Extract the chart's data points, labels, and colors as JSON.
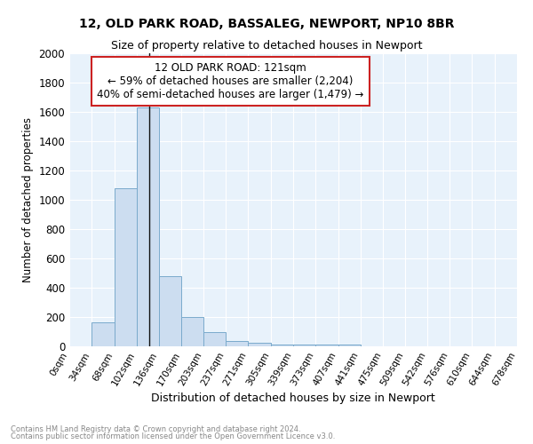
{
  "title_line1": "12, OLD PARK ROAD, BASSALEG, NEWPORT, NP10 8BR",
  "title_line2": "Size of property relative to detached houses in Newport",
  "xlabel": "Distribution of detached houses by size in Newport",
  "ylabel": "Number of detached properties",
  "footnote1": "Contains HM Land Registry data © Crown copyright and database right 2024.",
  "footnote2": "Contains public sector information licensed under the Open Government Licence v3.0.",
  "annotation_title": "12 OLD PARK ROAD: 121sqm",
  "annotation_line1": "← 59% of detached houses are smaller (2,204)",
  "annotation_line2": "40% of semi-detached houses are larger (1,479) →",
  "property_size": 121,
  "bar_color": "#ccddf0",
  "bar_edge_color": "#7aaacc",
  "property_line_color": "#111111",
  "annotation_box_color": "#ffffff",
  "annotation_box_edge_color": "#cc2222",
  "background_color": "#e8f2fb",
  "bins": [
    0,
    34,
    68,
    102,
    136,
    170,
    203,
    237,
    271,
    305,
    339,
    373,
    407,
    441,
    475,
    509,
    542,
    576,
    610,
    644,
    678
  ],
  "counts": [
    0,
    165,
    1080,
    1630,
    480,
    200,
    100,
    35,
    25,
    15,
    15,
    15,
    15,
    0,
    0,
    0,
    0,
    0,
    0,
    0
  ],
  "ylim": [
    0,
    2000
  ],
  "yticks": [
    0,
    200,
    400,
    600,
    800,
    1000,
    1200,
    1400,
    1600,
    1800,
    2000
  ],
  "bin_labels": [
    "0sqm",
    "34sqm",
    "68sqm",
    "102sqm",
    "136sqm",
    "170sqm",
    "203sqm",
    "237sqm",
    "271sqm",
    "305sqm",
    "339sqm",
    "373sqm",
    "407sqm",
    "441sqm",
    "475sqm",
    "509sqm",
    "542sqm",
    "576sqm",
    "610sqm",
    "644sqm",
    "678sqm"
  ]
}
